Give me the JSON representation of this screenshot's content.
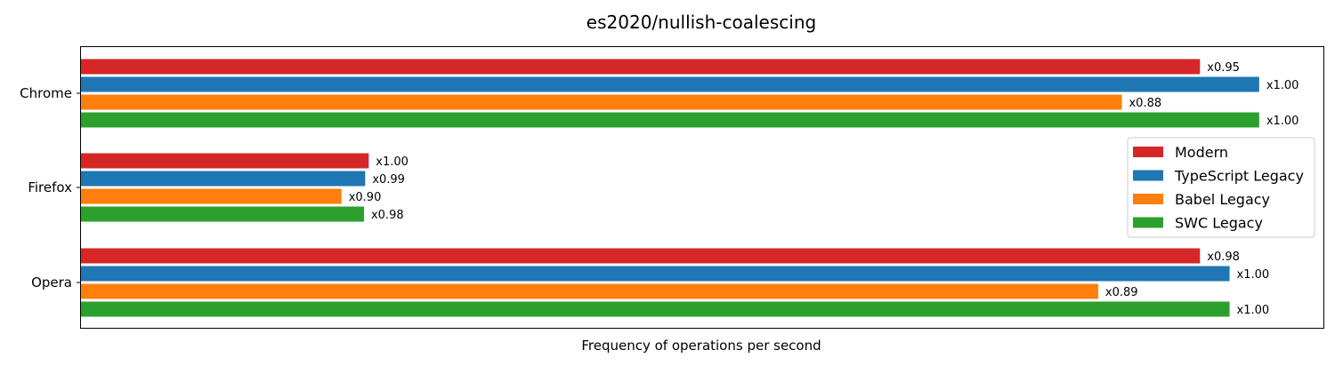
{
  "chart_data": {
    "type": "bar",
    "orientation": "horizontal",
    "title": "es2020/nullish-coalescing",
    "xlabel": "Frequency of operations per second",
    "ylabel": "",
    "categories": [
      "Chrome",
      "Firefox",
      "Opera"
    ],
    "series": [
      {
        "name": "Modern",
        "color": "#d62728",
        "values": [
          0.945,
          0.243,
          0.945
        ],
        "labels": [
          "x0.95",
          "x1.00",
          "x0.98"
        ]
      },
      {
        "name": "TypeScript Legacy",
        "color": "#1f77b4",
        "values": [
          0.995,
          0.24,
          0.97
        ],
        "labels": [
          "x1.00",
          "x0.99",
          "x1.00"
        ]
      },
      {
        "name": "Babel Legacy",
        "color": "#ff7f0e",
        "values": [
          0.879,
          0.22,
          0.859
        ],
        "labels": [
          "x0.88",
          "x0.90",
          "x0.89"
        ]
      },
      {
        "name": "SWC Legacy",
        "color": "#2ca02c",
        "values": [
          0.995,
          0.239,
          0.97
        ],
        "labels": [
          "x1.00",
          "x0.98",
          "x1.00"
        ]
      }
    ],
    "xlim": [
      0,
      1.05
    ],
    "grid": false,
    "legend": "center-right"
  }
}
